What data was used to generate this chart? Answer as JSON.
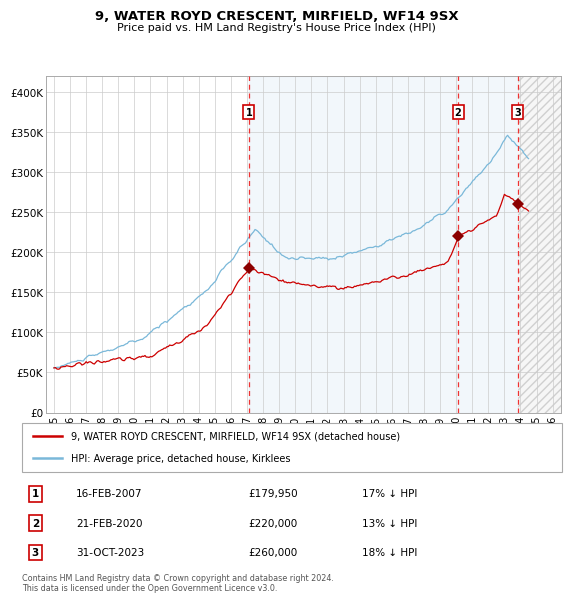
{
  "title1": "9, WATER ROYD CRESCENT, MIRFIELD, WF14 9SX",
  "title2": "Price paid vs. HM Land Registry's House Price Index (HPI)",
  "ylim": [
    0,
    420000
  ],
  "yticks": [
    0,
    50000,
    100000,
    150000,
    200000,
    250000,
    300000,
    350000,
    400000
  ],
  "ytick_labels": [
    "£0",
    "£50K",
    "£100K",
    "£150K",
    "£200K",
    "£250K",
    "£300K",
    "£350K",
    "£400K"
  ],
  "xlim_start": 1994.5,
  "xlim_end": 2026.5,
  "xtick_years": [
    1995,
    1996,
    1997,
    1998,
    1999,
    2000,
    2001,
    2002,
    2003,
    2004,
    2005,
    2006,
    2007,
    2008,
    2009,
    2010,
    2011,
    2012,
    2013,
    2014,
    2015,
    2016,
    2017,
    2018,
    2019,
    2020,
    2021,
    2022,
    2023,
    2024,
    2025,
    2026
  ],
  "hpi_color": "#7ab8d9",
  "price_color": "#cc0000",
  "sale_marker_color": "#8b0000",
  "dashed_line_color": "#ee3333",
  "bg_fill_color": "#ddeeff",
  "grid_color": "#cccccc",
  "sale1_year": 2007.12,
  "sale1_price": 179950,
  "sale1_label": "1",
  "sale2_year": 2020.12,
  "sale2_price": 220000,
  "sale2_label": "2",
  "sale3_year": 2023.83,
  "sale3_price": 260000,
  "sale3_label": "3",
  "legend_red_label": "9, WATER ROYD CRESCENT, MIRFIELD, WF14 9SX (detached house)",
  "legend_blue_label": "HPI: Average price, detached house, Kirklees",
  "table_rows": [
    {
      "num": "1",
      "date": "16-FEB-2007",
      "price": "£179,950",
      "hpi": "17% ↓ HPI"
    },
    {
      "num": "2",
      "date": "21-FEB-2020",
      "price": "£220,000",
      "hpi": "13% ↓ HPI"
    },
    {
      "num": "3",
      "date": "31-OCT-2023",
      "price": "£260,000",
      "hpi": "18% ↓ HPI"
    }
  ],
  "footer": "Contains HM Land Registry data © Crown copyright and database right 2024.\nThis data is licensed under the Open Government Licence v3.0."
}
